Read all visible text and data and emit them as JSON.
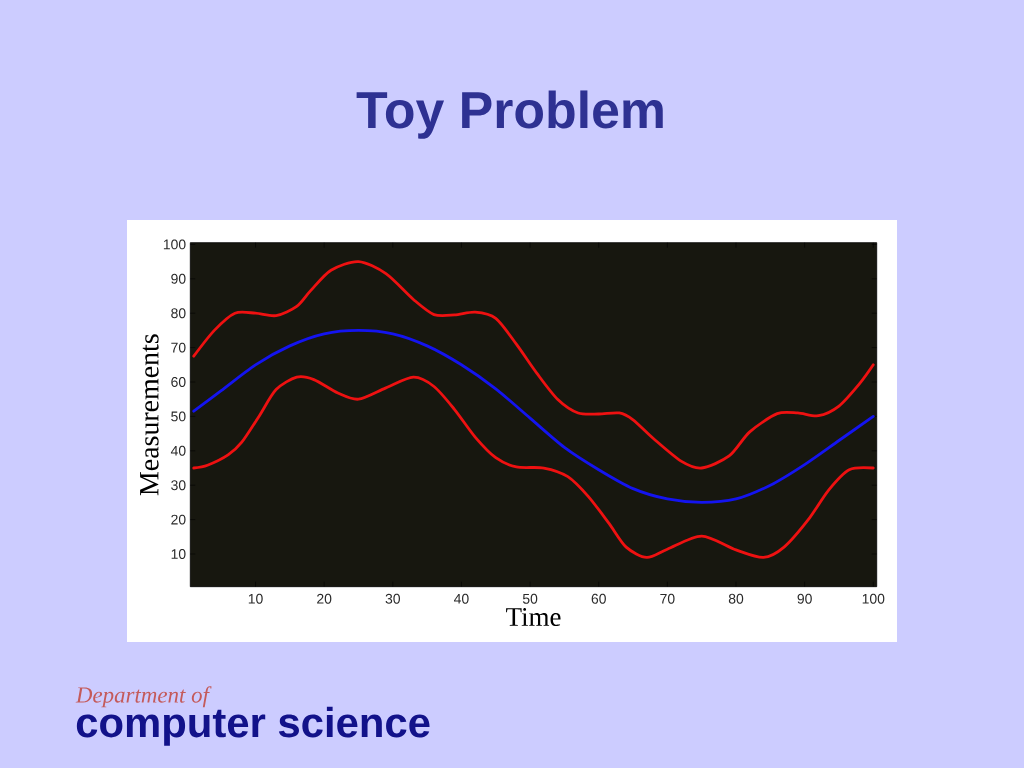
{
  "chart_data": {
    "type": "line",
    "title": "Toy Problem",
    "xlabel": "Time",
    "ylabel": "Measurements",
    "xlim": [
      0.5,
      100.5
    ],
    "ylim": [
      0.5,
      100.5
    ],
    "xticks": [
      10,
      20,
      30,
      40,
      50,
      60,
      70,
      80,
      90,
      100
    ],
    "yticks": [
      10,
      20,
      30,
      40,
      50,
      60,
      70,
      80,
      90,
      100
    ],
    "marker": "none",
    "line_style": "solid",
    "series": [
      {
        "color": "#1414f0",
        "x": [
          1,
          5,
          10,
          15,
          20,
          25,
          30,
          35,
          40,
          45,
          50,
          55,
          60,
          65,
          70,
          75,
          80,
          85,
          90,
          95,
          100
        ],
        "values": [
          51.5,
          57.5,
          65,
          70.5,
          74,
          75,
          74,
          70.5,
          65,
          58,
          49.5,
          41,
          34.5,
          29,
          26,
          25,
          26,
          30,
          36,
          43,
          50
        ]
      },
      {
        "color": "#ee1111",
        "x": [
          1,
          4,
          7,
          10,
          13,
          16,
          18,
          21,
          25,
          29,
          33,
          36,
          39,
          42,
          45,
          48,
          51,
          54,
          57,
          60,
          63,
          65,
          68,
          72,
          75,
          79,
          82,
          86,
          89,
          92,
          95,
          98,
          100
        ],
        "values": [
          67.5,
          75,
          80,
          80,
          79.3,
          82,
          86.5,
          92.5,
          95,
          91.5,
          84,
          79.6,
          79.5,
          80.3,
          78.5,
          71,
          62.5,
          55,
          51,
          50.7,
          51,
          49,
          43.5,
          37,
          35,
          38.5,
          45.5,
          50.8,
          51,
          50.2,
          53,
          59.5,
          65
        ]
      },
      {
        "color": "#ee1111",
        "x": [
          1,
          3,
          6,
          8,
          10.5,
          13,
          16,
          18.5,
          22,
          25,
          29,
          33,
          36,
          39,
          42,
          45,
          48,
          52,
          55.5,
          58.5,
          61.5,
          64,
          67,
          70,
          75,
          80,
          84,
          87,
          90.5,
          93.5,
          96.5,
          100
        ],
        "values": [
          35,
          35.8,
          38.8,
          42.5,
          50,
          57.8,
          61.4,
          60.7,
          56.8,
          55,
          58.3,
          61.4,
          58.7,
          52,
          44,
          38,
          35.3,
          35,
          32.5,
          26.7,
          18.9,
          12,
          9,
          11.4,
          15.2,
          11.2,
          9,
          12,
          19.9,
          28.6,
          34.5,
          35
        ]
      }
    ],
    "annotations": [
      "Department of",
      "computer science"
    ]
  }
}
